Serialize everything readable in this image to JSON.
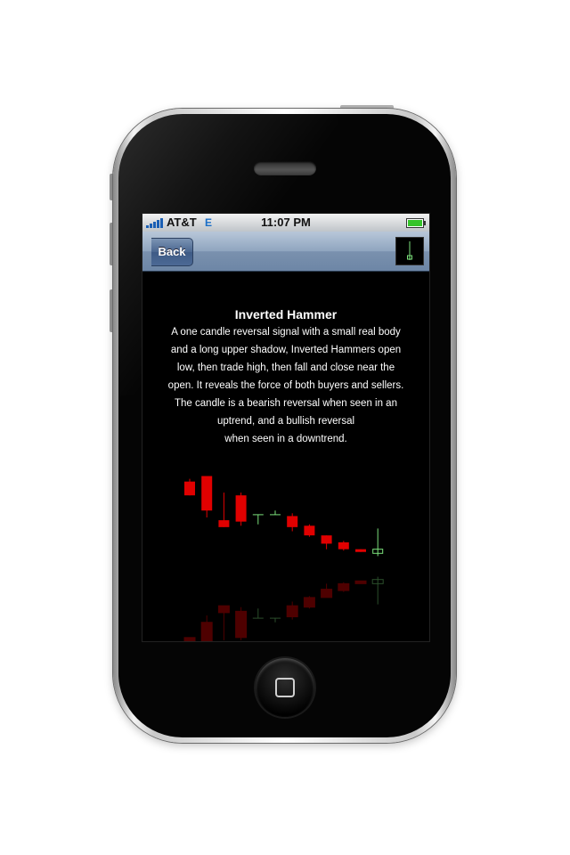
{
  "status_bar": {
    "carrier": "AT&T",
    "network": "E",
    "time": "11:07 PM"
  },
  "nav": {
    "back_label": "Back"
  },
  "content": {
    "title": "Inverted Hammer",
    "description_lines": [
      "A one candle reversal signal with a small real body",
      "and a long upper shadow, Inverted Hammers open",
      "low, then trade high, then fall and close near the",
      "open. It reveals the force of both buyers and sellers.",
      "The candle is a bearish reversal when seen in an",
      "uptrend, and a bullish reversal",
      "when seen in a downtrend."
    ]
  },
  "colors": {
    "bearish": "#e00000",
    "bullish": "#7be07b"
  },
  "chart_data": {
    "type": "candlestick",
    "candles": [
      {
        "open": 86,
        "close": 76,
        "high": 88,
        "low": 76,
        "dir": "down"
      },
      {
        "open": 90,
        "close": 65,
        "high": 90,
        "low": 60,
        "dir": "down"
      },
      {
        "open": 58,
        "close": 53,
        "high": 78,
        "low": 53,
        "dir": "down"
      },
      {
        "open": 76,
        "close": 57,
        "high": 78,
        "low": 54,
        "dir": "down"
      },
      {
        "open": 62,
        "close": 62,
        "high": 62,
        "low": 55,
        "dir": "doji"
      },
      {
        "open": 62,
        "close": 62,
        "high": 65,
        "low": 62,
        "dir": "doji"
      },
      {
        "open": 61,
        "close": 53,
        "high": 63,
        "low": 50,
        "dir": "down"
      },
      {
        "open": 54,
        "close": 47,
        "high": 55,
        "low": 46,
        "dir": "down"
      },
      {
        "open": 47,
        "close": 41,
        "high": 47,
        "low": 37,
        "dir": "down"
      },
      {
        "open": 42,
        "close": 37,
        "high": 43,
        "low": 36,
        "dir": "down"
      },
      {
        "open": 37,
        "close": 35,
        "high": 37,
        "low": 35,
        "dir": "down"
      },
      {
        "open": 34,
        "close": 37,
        "high": 52,
        "low": 32,
        "dir": "up"
      }
    ]
  }
}
